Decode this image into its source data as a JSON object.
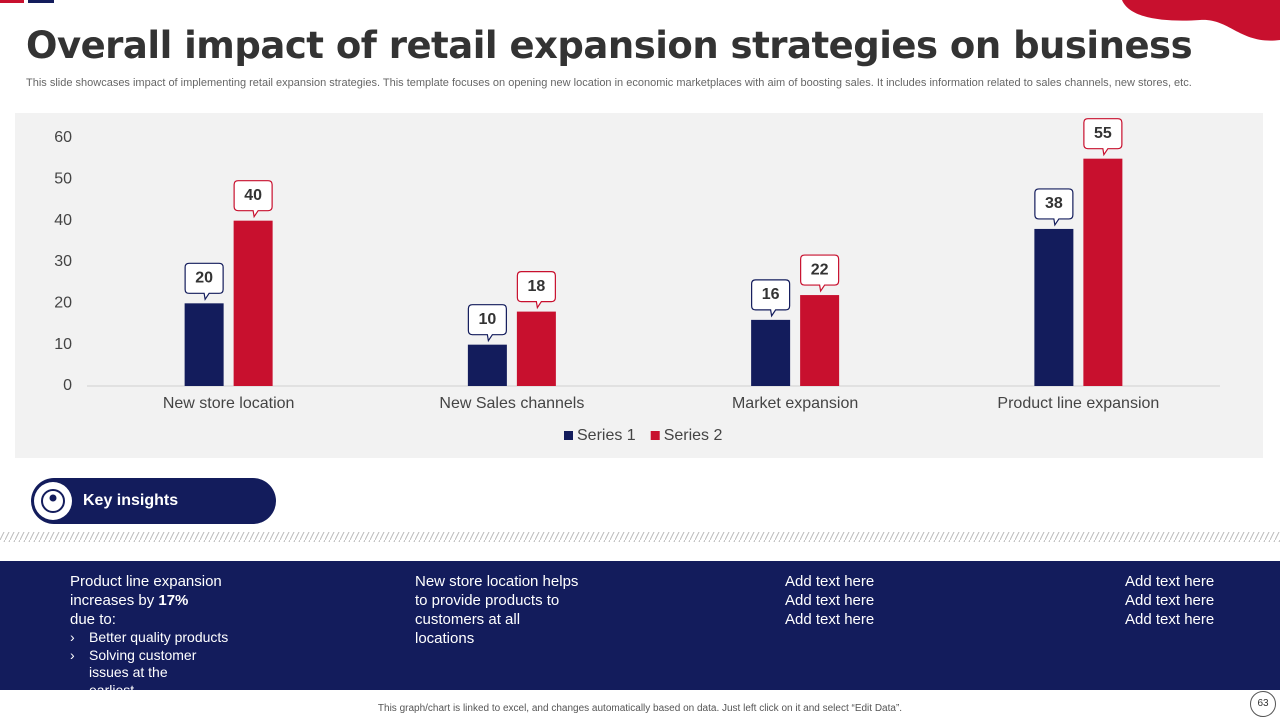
{
  "title": "Overall impact of retail expansion strategies on business",
  "subtitle": "This slide showcases impact of implementing retail expansion strategies. This template focuses on opening new location in economic marketplaces with aim of boosting sales. It includes information related to sales channels, new stores, etc.",
  "chart_data": {
    "type": "bar",
    "categories": [
      "New store location",
      "New Sales channels",
      "Market expansion",
      "Product line expansion"
    ],
    "series": [
      {
        "name": "Series 1",
        "color": "#131c5c",
        "values": [
          20,
          10,
          16,
          38
        ]
      },
      {
        "name": "Series 2",
        "color": "#c8102e",
        "values": [
          40,
          18,
          22,
          55
        ]
      }
    ],
    "ylim": [
      0,
      60
    ],
    "yticks": [
      0,
      10,
      20,
      30,
      40,
      50,
      60
    ],
    "grid": false,
    "legend": "bottom"
  },
  "insights": {
    "title": "Key insights",
    "column_1": {
      "text_before": "Product line expansion increases by ",
      "highlight": "17%",
      "text_after": "due to:",
      "bullets": [
        "Better quality products",
        "Solving customer issues at the earliest"
      ]
    },
    "column_2": "New store location helps to provide products to customers at all locations",
    "column_3": [
      "Add text here",
      "Add text here",
      "Add text here"
    ],
    "column_4": [
      "Add text here",
      "Add text here",
      "Add text here"
    ]
  },
  "footer": "This graph/chart is linked to excel, and changes automatically based on data. Just left click on it and select “Edit Data”.",
  "page_number": "63"
}
